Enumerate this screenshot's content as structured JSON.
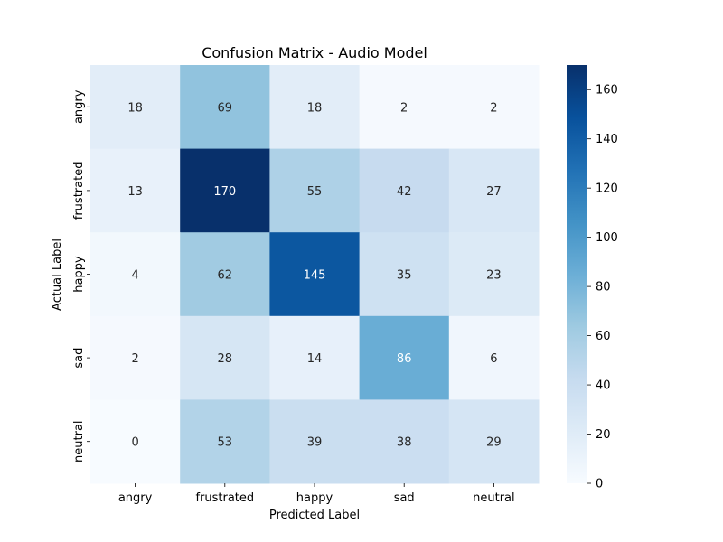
{
  "chart_data": {
    "type": "heatmap",
    "title": "Confusion Matrix - Audio Model",
    "xlabel": "Predicted Label",
    "ylabel": "Actual Label",
    "x_categories": [
      "angry",
      "frustrated",
      "happy",
      "sad",
      "neutral"
    ],
    "y_categories": [
      "angry",
      "frustrated",
      "happy",
      "sad",
      "neutral"
    ],
    "values": [
      [
        18,
        69,
        18,
        2,
        2
      ],
      [
        13,
        170,
        55,
        42,
        27
      ],
      [
        4,
        62,
        145,
        35,
        23
      ],
      [
        2,
        28,
        14,
        86,
        6
      ],
      [
        0,
        53,
        39,
        38,
        29
      ]
    ],
    "colorbar": {
      "min": 0,
      "max": 170,
      "ticks": [
        0,
        20,
        40,
        60,
        80,
        100,
        120,
        140,
        160
      ],
      "colormap": "Blues"
    },
    "annotations": true,
    "grid": false
  }
}
